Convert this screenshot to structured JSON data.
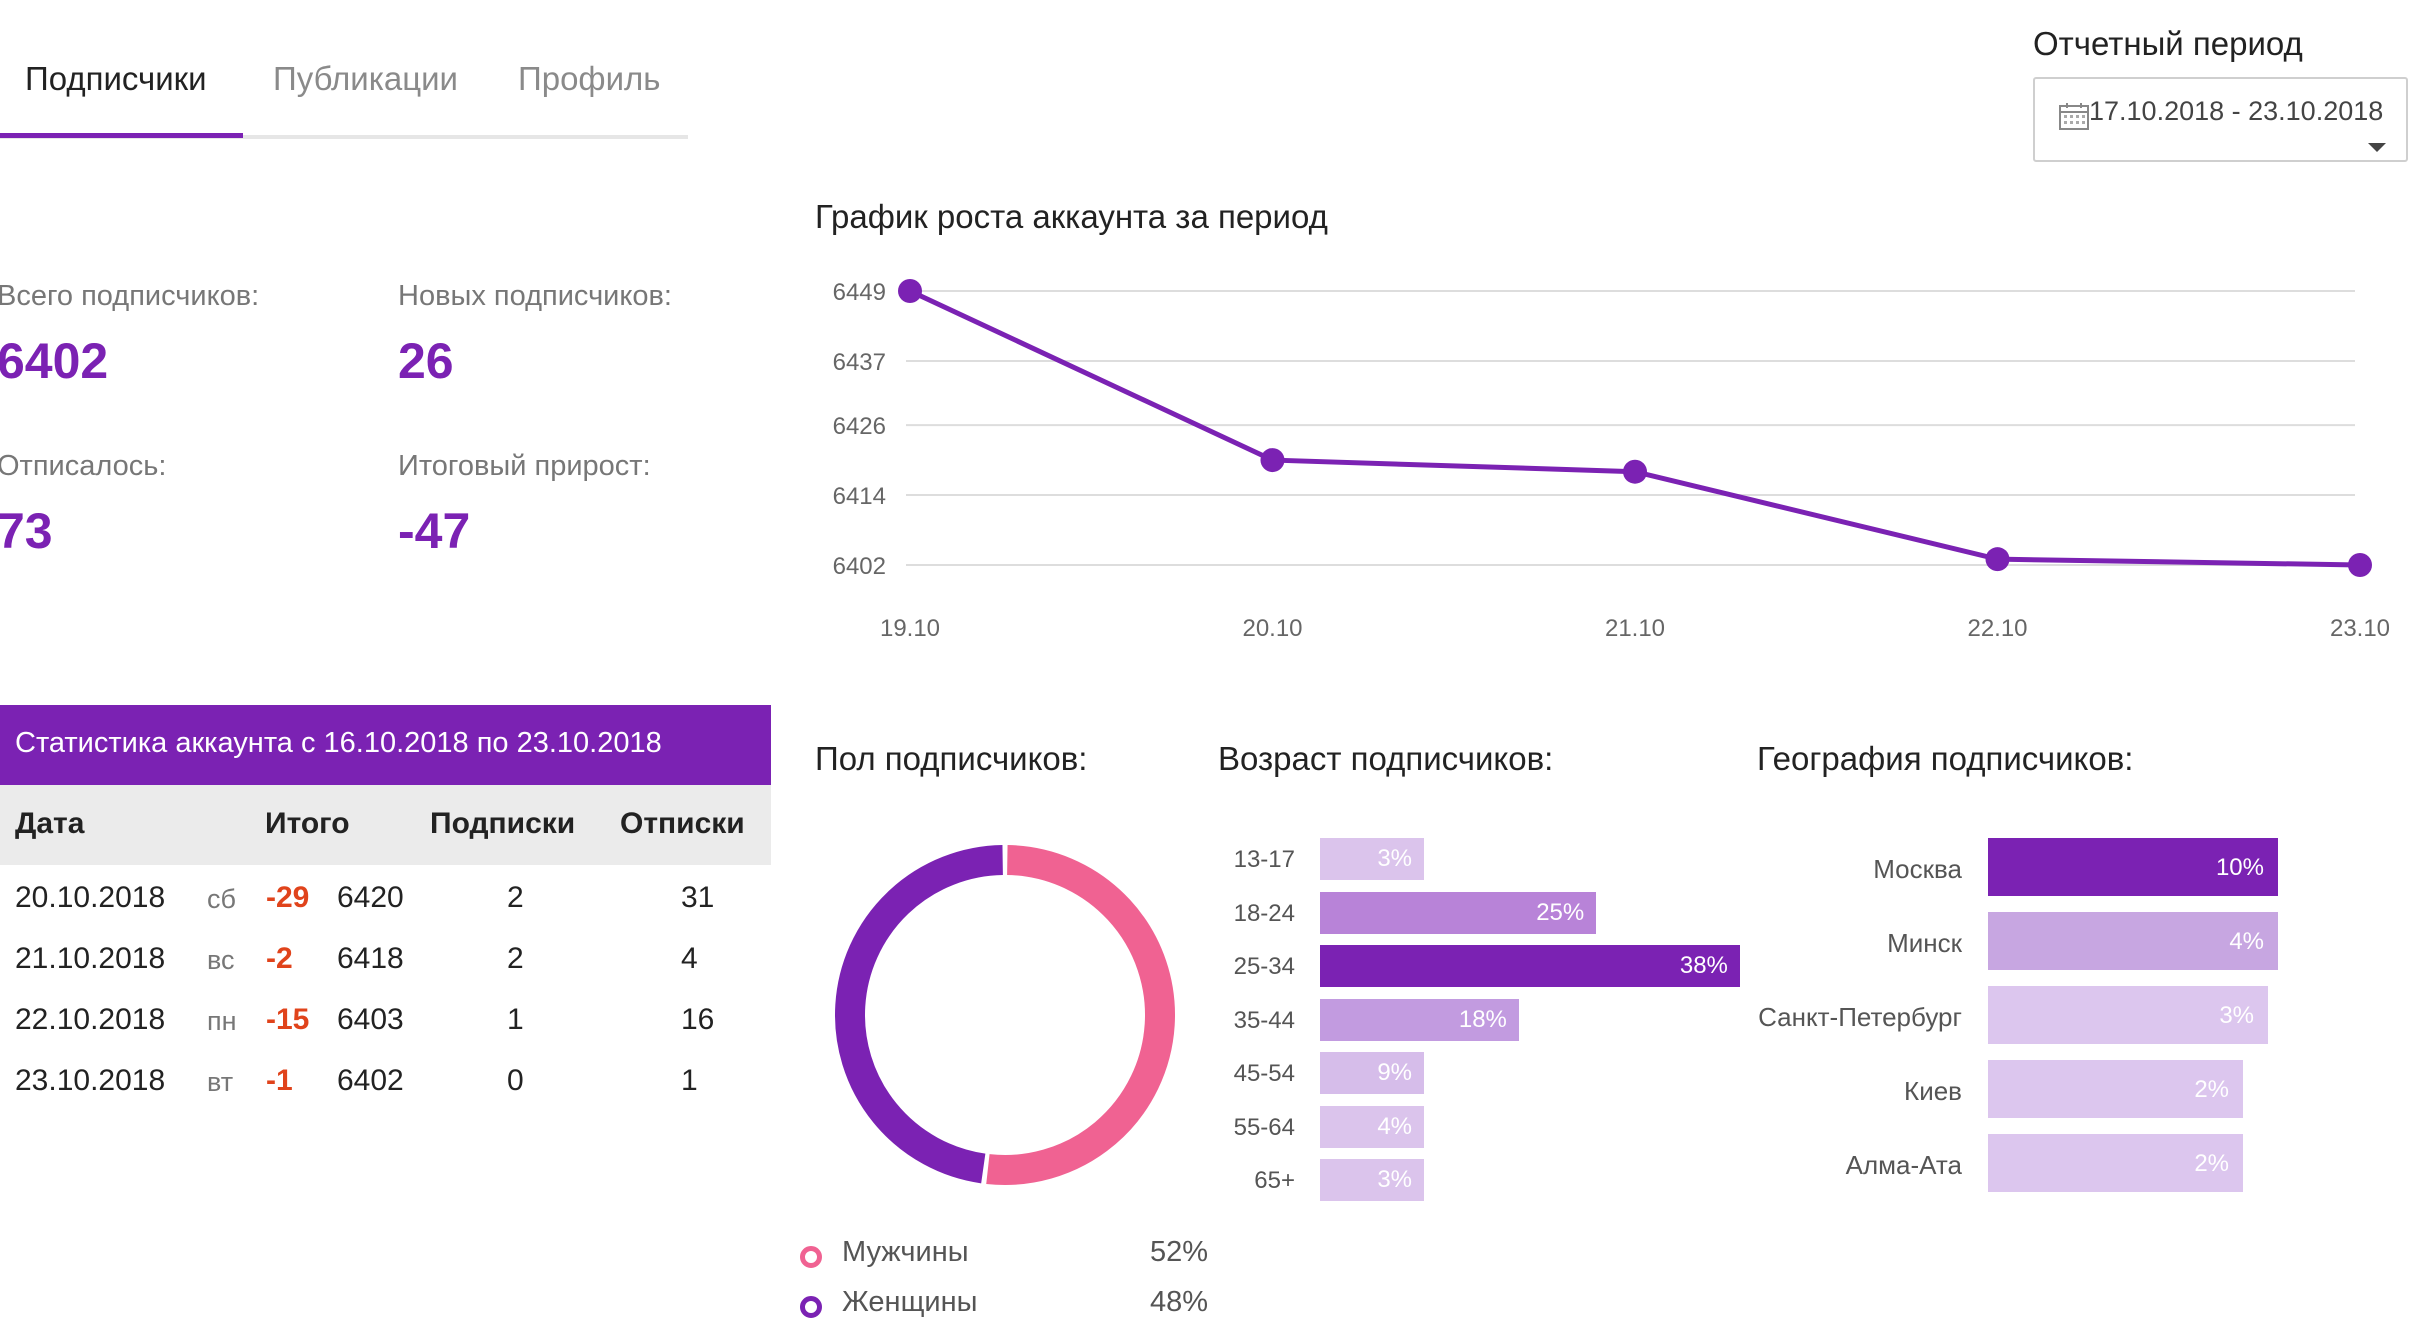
{
  "tabs": [
    {
      "label": "Подписчики",
      "active": true
    },
    {
      "label": "Публикации",
      "active": false
    },
    {
      "label": "Профиль",
      "active": false
    }
  ],
  "period": {
    "title": "Отчетный период",
    "value": "17.10.2018 - 23.10.2018"
  },
  "stats": {
    "total_label": "Всего подписчиков:",
    "total_value": "6402",
    "new_label": "Новых подписчиков:",
    "new_value": "26",
    "unsub_label": "Отписалось:",
    "unsub_value": "73",
    "net_label": "Итоговый прирост:",
    "net_value": "-47"
  },
  "growth": {
    "title": "График роста аккаунта за период"
  },
  "table": {
    "header": "Статистика аккаунта с 16.10.2018 по 23.10.2018",
    "columns": [
      "Дата",
      "Итого",
      "Подписки",
      "Отписки"
    ],
    "rows": [
      {
        "date": "20.10.2018",
        "dow": "сб",
        "diff": "-29",
        "total": "6420",
        "subs": "2",
        "unsubs": "31"
      },
      {
        "date": "21.10.2018",
        "dow": "вс",
        "diff": "-2",
        "total": "6418",
        "subs": "2",
        "unsubs": "4"
      },
      {
        "date": "22.10.2018",
        "dow": "пн",
        "diff": "-15",
        "total": "6403",
        "subs": "1",
        "unsubs": "16"
      },
      {
        "date": "23.10.2018",
        "dow": "вт",
        "diff": "-1",
        "total": "6402",
        "subs": "0",
        "unsubs": "1"
      }
    ]
  },
  "gender": {
    "title": "Пол подписчиков:",
    "items": [
      {
        "label": "Мужчины",
        "pct": "52%",
        "color": "#f06292"
      },
      {
        "label": "Женщины",
        "pct": "48%",
        "color": "#7b22b3"
      }
    ]
  },
  "age": {
    "title": "Возраст подписчиков:",
    "items": [
      {
        "label": "13-17",
        "value": 3,
        "text": "3%",
        "color": "#dbc4ec"
      },
      {
        "label": "18-24",
        "value": 25,
        "text": "25%",
        "color": "#b883d8"
      },
      {
        "label": "25-34",
        "value": 38,
        "text": "38%",
        "color": "#7b22b3"
      },
      {
        "label": "35-44",
        "value": 18,
        "text": "18%",
        "color": "#c29be0"
      },
      {
        "label": "45-54",
        "value": 9,
        "text": "9%",
        "color": "#d6bdea"
      },
      {
        "label": "55-64",
        "value": 4,
        "text": "4%",
        "color": "#dbc4ec"
      },
      {
        "label": "65+",
        "value": 3,
        "text": "3%",
        "color": "#dbc4ec"
      }
    ]
  },
  "geo": {
    "title": "География подписчиков:",
    "items": [
      {
        "label": "Москва",
        "value": 10,
        "text": "10%",
        "color": "#7b22b3"
      },
      {
        "label": "Минск",
        "value": 4,
        "text": "4%",
        "color": "#c7a6e1"
      },
      {
        "label": "Санкт-Петербург",
        "value": 3,
        "text": "3%",
        "color": "#dcc6ee"
      },
      {
        "label": "Киев",
        "value": 2,
        "text": "2%",
        "color": "#dcc6ee"
      },
      {
        "label": "Алма-Ата",
        "value": 2,
        "text": "2%",
        "color": "#dcc6ee"
      }
    ]
  },
  "chart_data": [
    {
      "type": "line",
      "title": "График роста аккаунта за период",
      "x": [
        "19.10",
        "20.10",
        "21.10",
        "22.10",
        "23.10"
      ],
      "series": [
        {
          "values": [
            6449,
            6420,
            6418,
            6403,
            6402
          ],
          "color": "#7b22b3"
        }
      ],
      "yticks": [
        6449,
        6437,
        6426,
        6414,
        6402
      ],
      "ylim": [
        6402,
        6449
      ],
      "grid": true
    },
    {
      "type": "pie",
      "title": "Пол подписчиков:",
      "categories": [
        "Мужчины",
        "Женщины"
      ],
      "values": [
        52,
        48
      ]
    },
    {
      "type": "bar",
      "title": "Возраст подписчиков:",
      "categories": [
        "13-17",
        "18-24",
        "25-34",
        "35-44",
        "45-54",
        "55-64",
        "65+"
      ],
      "values": [
        3,
        25,
        38,
        18,
        9,
        4,
        3
      ]
    },
    {
      "type": "bar",
      "title": "География подписчиков:",
      "categories": [
        "Москва",
        "Минск",
        "Санкт-Петербург",
        "Киев",
        "Алма-Ата"
      ],
      "values": [
        10,
        4,
        3,
        2,
        2
      ]
    }
  ]
}
